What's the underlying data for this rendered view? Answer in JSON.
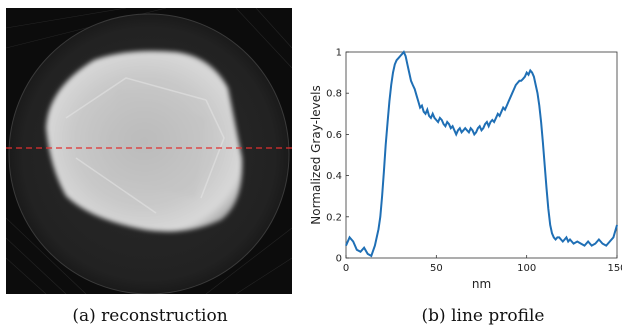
{
  "captions": {
    "a": "(a) reconstruction",
    "b": "(b) line profile"
  },
  "reconstruction": {
    "profile_line_color": "#e03030"
  },
  "chart_data": {
    "type": "line",
    "title": "",
    "xlabel": "nm",
    "ylabel": "Normalized Gray-levels",
    "xlim": [
      0,
      150
    ],
    "ylim": [
      0,
      1
    ],
    "xticks": [
      0,
      50,
      100,
      150
    ],
    "xtick_labels": [
      "0",
      "50",
      "100",
      "150"
    ],
    "yticks": [
      0,
      0.2,
      0.4,
      0.6,
      0.8,
      1
    ],
    "ytick_labels": [
      "0",
      "0.2",
      "0.4",
      "0.6",
      "0.8",
      "1"
    ],
    "grid": false,
    "line_color": "#1f6fb5",
    "series": [
      {
        "x": [
          0,
          2,
          4,
          6,
          8,
          10,
          12,
          14,
          16,
          18,
          19,
          20,
          21,
          22,
          23,
          24,
          25,
          26,
          27,
          28,
          29,
          30,
          31,
          32,
          33,
          34,
          35,
          36,
          37,
          38,
          39,
          40,
          41,
          42,
          43,
          44,
          45,
          46,
          47,
          48,
          49,
          50,
          51,
          52,
          53,
          54,
          55,
          56,
          57,
          58,
          59,
          60,
          61,
          62,
          63,
          64,
          65,
          66,
          67,
          68,
          69,
          70,
          71,
          72,
          73,
          74,
          75,
          76,
          77,
          78,
          79,
          80,
          81,
          82,
          83,
          84,
          85,
          86,
          87,
          88,
          89,
          90,
          91,
          92,
          93,
          94,
          95,
          96,
          97,
          98,
          99,
          100,
          101,
          102,
          103,
          104,
          105,
          106,
          107,
          108,
          109,
          110,
          111,
          112,
          113,
          114,
          115,
          116,
          117,
          118,
          119,
          120,
          121,
          122,
          123,
          124,
          126,
          128,
          130,
          132,
          134,
          136,
          138,
          140,
          142,
          144,
          146,
          148,
          150
        ],
        "y": [
          0.06,
          0.1,
          0.08,
          0.04,
          0.03,
          0.05,
          0.02,
          0.01,
          0.06,
          0.14,
          0.2,
          0.3,
          0.42,
          0.55,
          0.66,
          0.76,
          0.84,
          0.9,
          0.94,
          0.96,
          0.97,
          0.98,
          0.99,
          1.0,
          0.98,
          0.94,
          0.9,
          0.86,
          0.84,
          0.82,
          0.79,
          0.76,
          0.73,
          0.74,
          0.71,
          0.7,
          0.72,
          0.69,
          0.68,
          0.7,
          0.68,
          0.67,
          0.66,
          0.68,
          0.67,
          0.65,
          0.64,
          0.66,
          0.65,
          0.63,
          0.64,
          0.62,
          0.6,
          0.62,
          0.63,
          0.61,
          0.62,
          0.63,
          0.62,
          0.61,
          0.63,
          0.62,
          0.6,
          0.61,
          0.63,
          0.64,
          0.62,
          0.63,
          0.65,
          0.66,
          0.64,
          0.66,
          0.67,
          0.66,
          0.68,
          0.7,
          0.69,
          0.71,
          0.73,
          0.72,
          0.74,
          0.76,
          0.78,
          0.8,
          0.82,
          0.84,
          0.85,
          0.86,
          0.86,
          0.87,
          0.88,
          0.9,
          0.89,
          0.91,
          0.9,
          0.88,
          0.84,
          0.8,
          0.74,
          0.66,
          0.56,
          0.45,
          0.34,
          0.24,
          0.16,
          0.12,
          0.1,
          0.09,
          0.1,
          0.1,
          0.09,
          0.08,
          0.09,
          0.1,
          0.08,
          0.09,
          0.07,
          0.08,
          0.07,
          0.06,
          0.08,
          0.06,
          0.07,
          0.09,
          0.07,
          0.06,
          0.08,
          0.1,
          0.16
        ]
      }
    ]
  }
}
